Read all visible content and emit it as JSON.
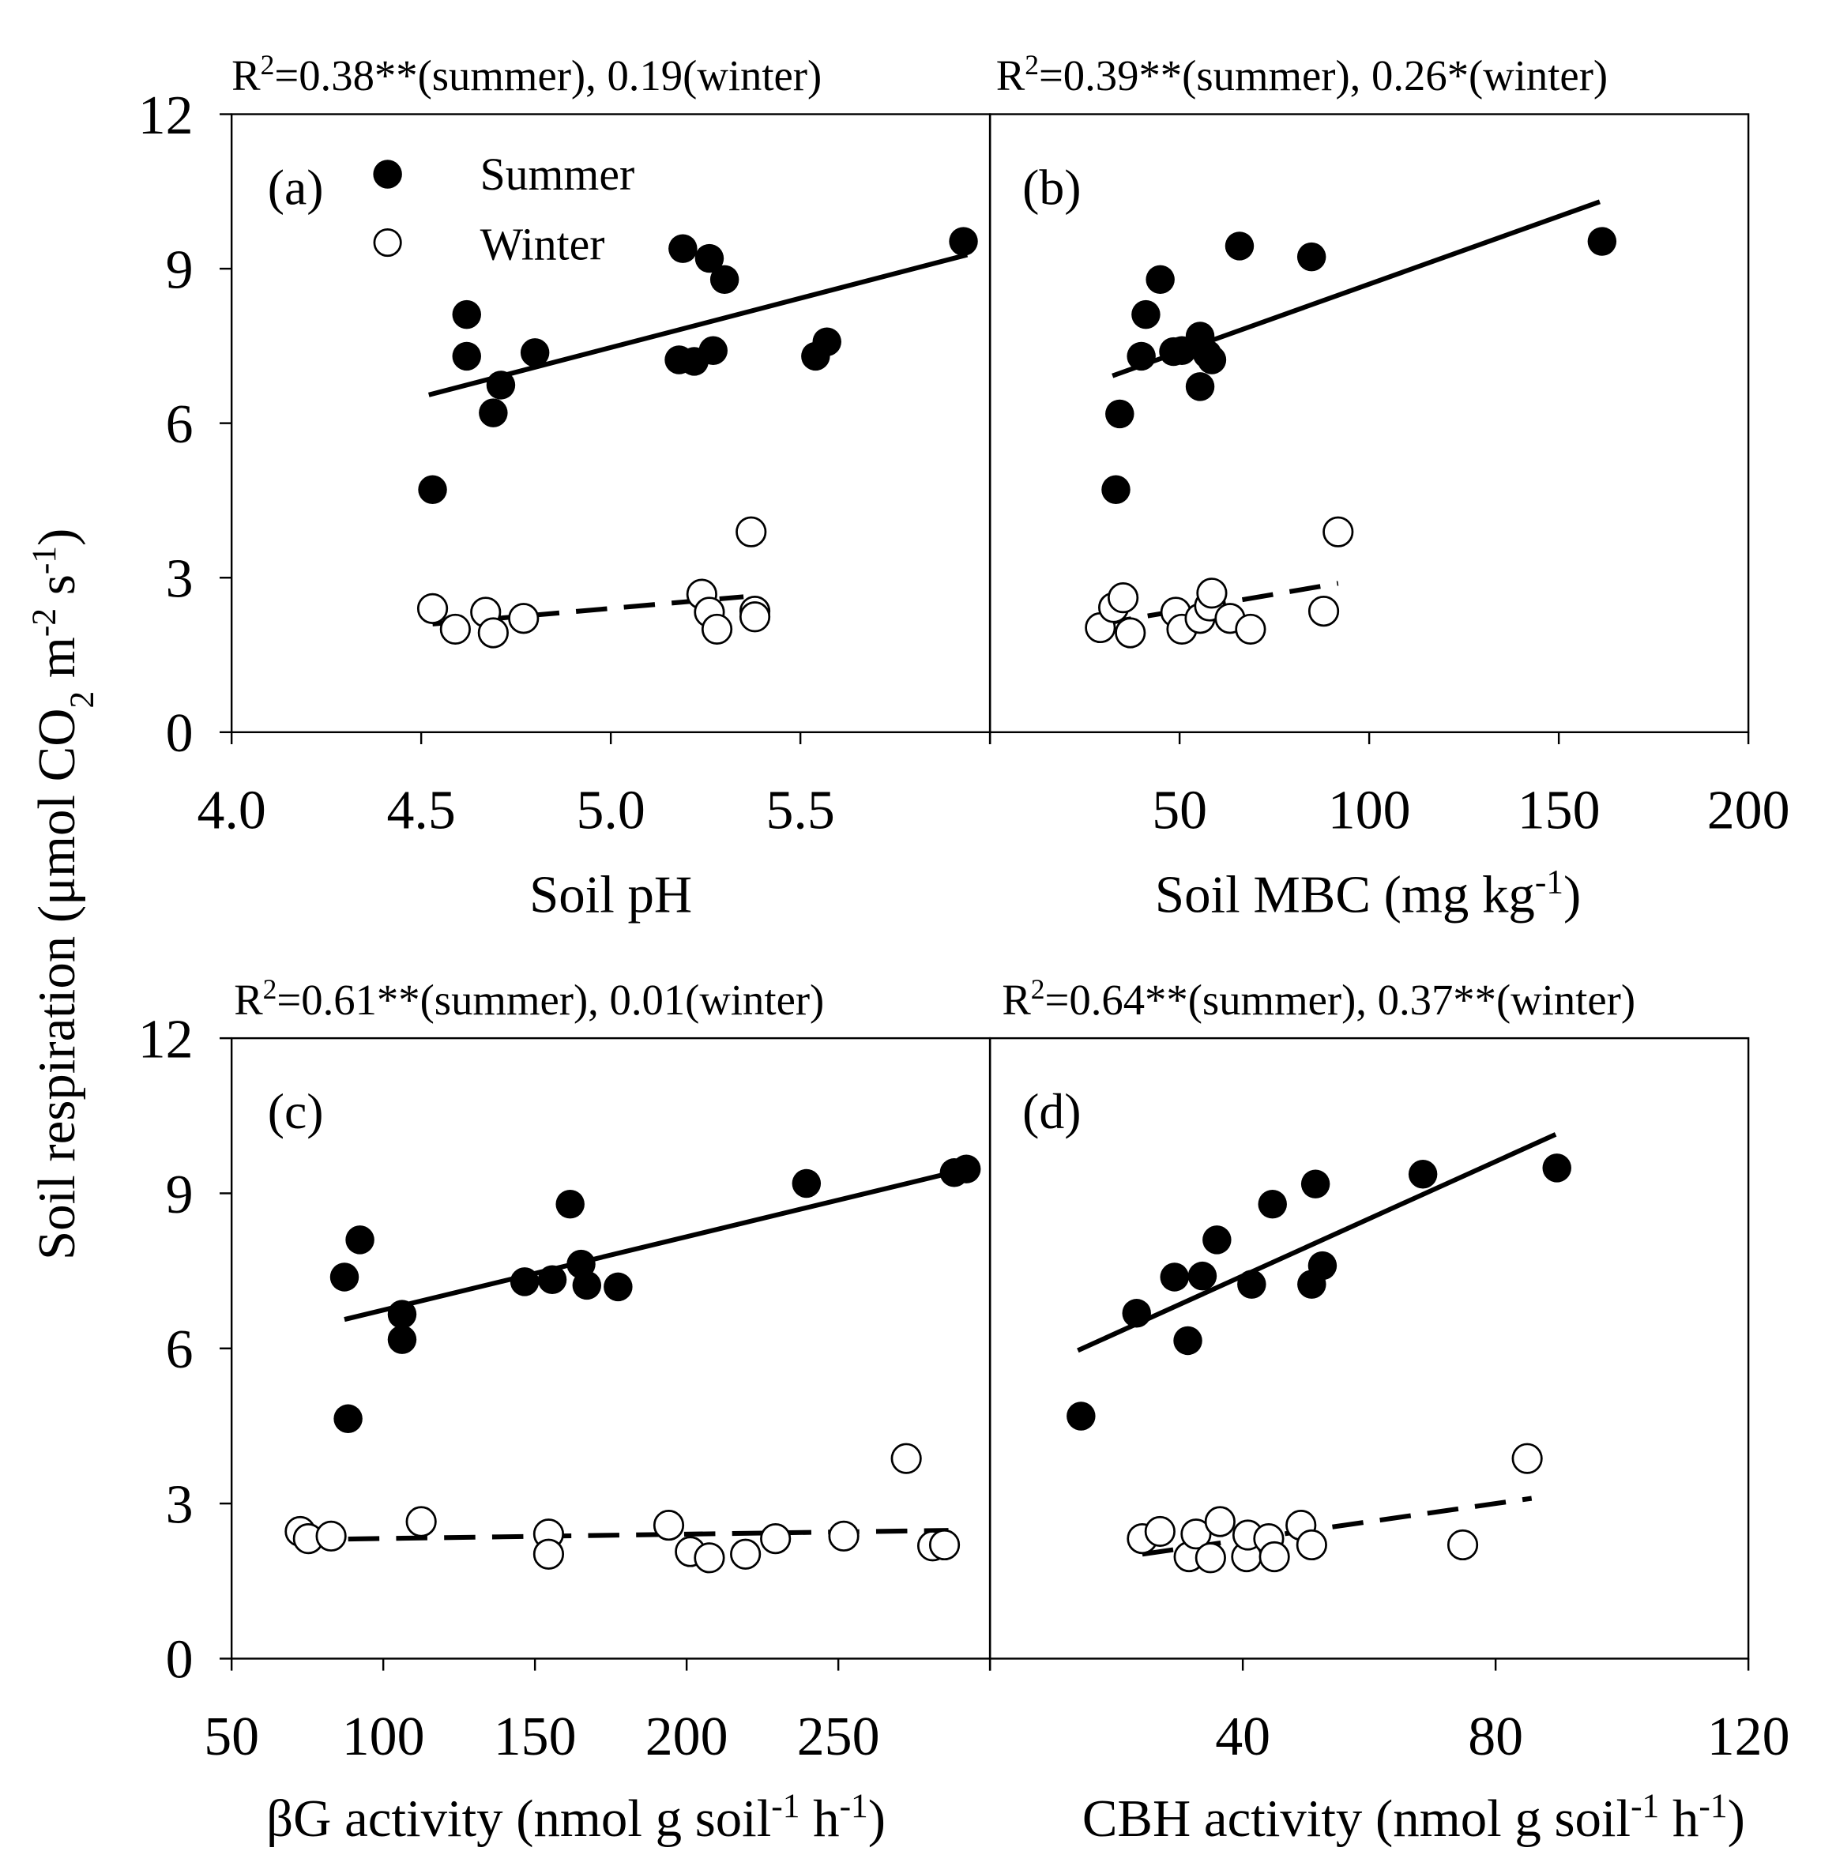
{
  "chart_data": {
    "type": "scatter",
    "legend": {
      "placement": "top-left of panel (a)",
      "entries": [
        {
          "label": "Summer",
          "marker": "filled-circle"
        },
        {
          "label": "Winter",
          "marker": "open-circle"
        }
      ]
    },
    "ylabel_parts": [
      {
        "t": "Soil respiration (μmol CO",
        "s": ""
      },
      {
        "t": "2",
        "s": "sub"
      },
      {
        "t": " m",
        "s": ""
      },
      {
        "t": "-2",
        "s": "sup"
      },
      {
        "t": " s",
        "s": ""
      },
      {
        "t": "-1",
        "s": "sup"
      },
      {
        "t": ")",
        "s": ""
      }
    ],
    "ylim": [
      0,
      12
    ],
    "yticks": [
      0,
      3,
      6,
      9,
      12
    ],
    "panels": [
      {
        "id": "a",
        "label": "(a)",
        "title_parts": [
          {
            "t": "R",
            "s": ""
          },
          {
            "t": "2",
            "s": "sup"
          },
          {
            "t": "=0.38**(summer), 0.19(winter)",
            "s": ""
          }
        ],
        "xlabel_parts": [
          {
            "t": "Soil pH",
            "s": ""
          }
        ],
        "xlim": [
          4.0,
          6.0
        ],
        "xticks": [
          4.0,
          4.5,
          5.0,
          5.5,
          6.0
        ],
        "xticklabels": [
          "4.0",
          "4.5",
          "5.0",
          "5.5",
          ""
        ],
        "summer": {
          "x": [
            4.53,
            4.62,
            4.62,
            4.71,
            4.69,
            4.8,
            5.19,
            5.26,
            5.3,
            5.18,
            5.22,
            5.27,
            5.54,
            5.57,
            5.93
          ],
          "y": [
            4.71,
            8.11,
            7.3,
            6.74,
            6.2,
            7.37,
            9.39,
            9.2,
            8.79,
            7.23,
            7.2,
            7.41,
            7.3,
            7.58,
            9.53
          ],
          "fit": [
            [
              4.52,
              6.55
            ],
            [
              5.94,
              9.27
            ]
          ]
        },
        "winter": {
          "x": [
            4.53,
            4.59,
            4.67,
            4.69,
            4.77,
            5.24,
            5.26,
            5.28,
            5.38,
            5.37,
            5.38
          ],
          "y": [
            2.4,
            2.0,
            2.33,
            1.93,
            2.21,
            2.68,
            2.33,
            2.0,
            2.35,
            3.89,
            2.24
          ],
          "fit": [
            [
              4.53,
              2.1
            ],
            [
              5.35,
              2.63
            ]
          ]
        }
      },
      {
        "id": "b",
        "label": "(b)",
        "title_parts": [
          {
            "t": "R",
            "s": ""
          },
          {
            "t": "2",
            "s": "sup"
          },
          {
            "t": "=0.39**(summer), 0.26*(winter)",
            "s": ""
          }
        ],
        "xlabel_parts": [
          {
            "t": "Soil MBC (mg kg",
            "s": ""
          },
          {
            "t": "-1",
            "s": "sup"
          },
          {
            "t": ")",
            "s": ""
          }
        ],
        "xlim": [
          0,
          200
        ],
        "xticks": [
          0,
          50,
          100,
          150,
          200
        ],
        "xticklabels": [
          "",
          "50",
          "100",
          "150",
          "200"
        ],
        "summer": {
          "x": [
            33.2,
            34.2,
            39.9,
            41.1,
            44.9,
            65.8,
            84.8,
            161.4,
            48.4,
            55.4,
            57.3,
            58.5,
            55.4,
            50.6
          ],
          "y": [
            4.71,
            6.18,
            7.3,
            8.11,
            8.79,
            9.44,
            9.23,
            9.53,
            7.39,
            7.69,
            7.34,
            7.23,
            6.71,
            7.41
          ],
          "fit": [
            [
              32.3,
              6.92
            ],
            [
              160.8,
              10.3
            ]
          ]
        },
        "winter": {
          "x": [
            29.1,
            32.6,
            35.1,
            37.0,
            49.0,
            50.6,
            55.4,
            57.9,
            58.5,
            63.3,
            68.7,
            88.0,
            91.8
          ],
          "y": [
            2.03,
            2.42,
            2.61,
            1.93,
            2.33,
            2.0,
            2.21,
            2.45,
            2.7,
            2.21,
            2.0,
            2.35,
            3.89
          ],
          "fit": [
            [
              29.1,
              2.1
            ],
            [
              91.8,
              2.89
            ]
          ]
        }
      },
      {
        "id": "c",
        "label": "(c)",
        "title_parts": [
          {
            "t": "R",
            "s": ""
          },
          {
            "t": "2",
            "s": "sup"
          },
          {
            "t": "=0.61**(summer), 0.01(winter)",
            "s": ""
          }
        ],
        "xlabel_parts": [
          {
            "t": "βG activity (nmol g soil",
            "s": ""
          },
          {
            "t": "-1",
            "s": "sup"
          },
          {
            "t": " h",
            "s": ""
          },
          {
            "t": "-1",
            "s": "sup"
          },
          {
            "t": ")",
            "s": ""
          }
        ],
        "xlim": [
          50,
          300
        ],
        "xticks": [
          50,
          100,
          150,
          200,
          250,
          300
        ],
        "xticklabels": [
          "50",
          "100",
          "150",
          "200",
          "250",
          ""
        ],
        "summer": {
          "x": [
            88.4,
            87.2,
            92.3,
            106.2,
            106.2,
            146.6,
            155.7,
            161.6,
            165.2,
            167.1,
            177.4,
            239.5,
            288.2,
            292.2
          ],
          "y": [
            4.64,
            7.38,
            8.1,
            6.66,
            6.17,
            7.29,
            7.33,
            8.79,
            7.63,
            7.22,
            7.19,
            9.19,
            9.4,
            9.47
          ],
          "fit": [
            [
              87.2,
              6.56
            ],
            [
              290.2,
              9.44
            ]
          ]
        },
        "winter": {
          "x": [
            72.6,
            75.3,
            82.8,
            112.5,
            154.5,
            154.5,
            194.1,
            201.2,
            207.5,
            219.4,
            229.3,
            251.8,
            272.4,
            281.1,
            285.0
          ],
          "y": [
            2.46,
            2.32,
            2.37,
            2.65,
            2.41,
            2.02,
            2.58,
            2.07,
            1.95,
            2.02,
            2.32,
            2.37,
            3.87,
            2.18,
            2.2
          ],
          "fit": [
            [
              72.6,
              2.3
            ],
            [
              286.3,
              2.48
            ]
          ]
        }
      },
      {
        "id": "d",
        "label": "(d)",
        "title_parts": [
          {
            "t": "R",
            "s": ""
          },
          {
            "t": "2",
            "s": "sup"
          },
          {
            "t": "=0.64**(summer), 0.37**(winter)",
            "s": ""
          }
        ],
        "xlabel_parts": [
          {
            "t": "CBH activity  (nmol g soil",
            "s": ""
          },
          {
            "t": "-1",
            "s": "sup"
          },
          {
            "t": " h",
            "s": ""
          },
          {
            "t": "-1",
            "s": "sup"
          },
          {
            "t": ")",
            "s": ""
          }
        ],
        "xlim": [
          0,
          120
        ],
        "xticks": [
          0,
          40,
          80,
          120
        ],
        "xticklabels": [
          "",
          "40",
          "80",
          "120"
        ],
        "summer": {
          "x": [
            14.4,
            23.2,
            29.2,
            33.6,
            31.3,
            35.9,
            41.4,
            44.7,
            51.5,
            50.9,
            52.6,
            68.5,
            89.7
          ],
          "y": [
            4.69,
            6.68,
            7.38,
            7.4,
            6.15,
            8.1,
            7.24,
            8.79,
            9.18,
            7.24,
            7.6,
            9.37,
            9.49
          ],
          "fit": [
            [
              13.9,
              5.96
            ],
            [
              89.5,
              10.14
            ]
          ]
        },
        "winter": {
          "x": [
            24.1,
            26.9,
            31.5,
            32.6,
            34.9,
            36.4,
            40.6,
            40.8,
            44.1,
            45.0,
            49.2,
            50.9,
            74.8,
            85.0
          ],
          "y": [
            2.32,
            2.46,
            1.97,
            2.41,
            1.95,
            2.65,
            1.97,
            2.39,
            2.32,
            1.97,
            2.58,
            2.2,
            2.2,
            3.87
          ],
          "fit": [
            [
              24.1,
              2.02
            ],
            [
              85.7,
              3.1
            ]
          ]
        }
      }
    ]
  }
}
